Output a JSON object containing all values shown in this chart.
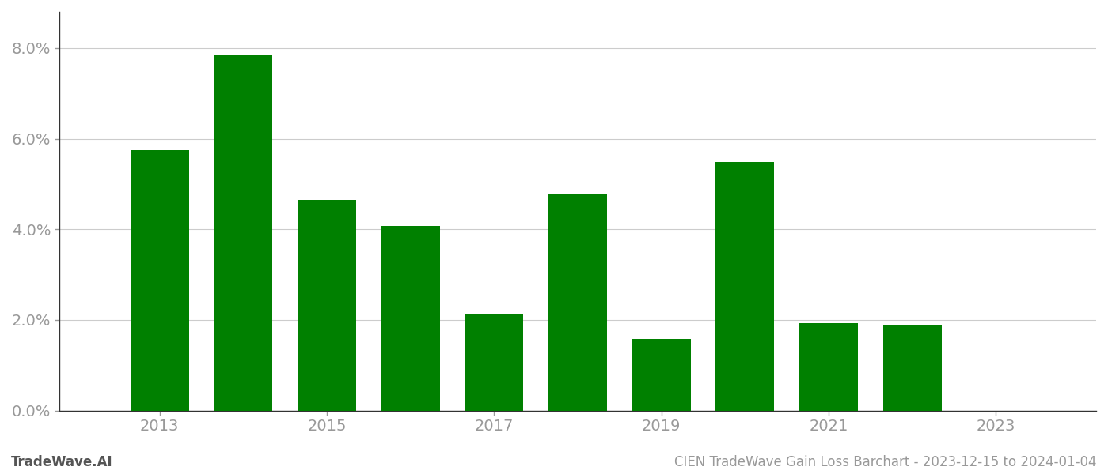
{
  "years": [
    2013,
    2014,
    2015,
    2016,
    2017,
    2018,
    2019,
    2020,
    2021,
    2022,
    2023
  ],
  "values": [
    0.0575,
    0.0785,
    0.0465,
    0.0407,
    0.0212,
    0.0477,
    0.0158,
    0.0548,
    0.0192,
    0.0188,
    null
  ],
  "bar_color": "#008000",
  "background_color": "#ffffff",
  "title": "CIEN TradeWave Gain Loss Barchart - 2023-12-15 to 2024-01-04",
  "watermark": "TradeWave.AI",
  "ylim": [
    0,
    0.088
  ],
  "yticks": [
    0.0,
    0.02,
    0.04,
    0.06,
    0.08
  ],
  "grid_color": "#cccccc",
  "axis_color": "#999999",
  "spine_color": "#333333",
  "title_color": "#999999",
  "watermark_color": "#555555",
  "bar_width": 0.7,
  "xlim": [
    2011.8,
    2024.2
  ],
  "xticks": [
    2013,
    2015,
    2017,
    2019,
    2021,
    2023
  ],
  "title_fontsize": 12,
  "watermark_fontsize": 12,
  "tick_fontsize": 14
}
